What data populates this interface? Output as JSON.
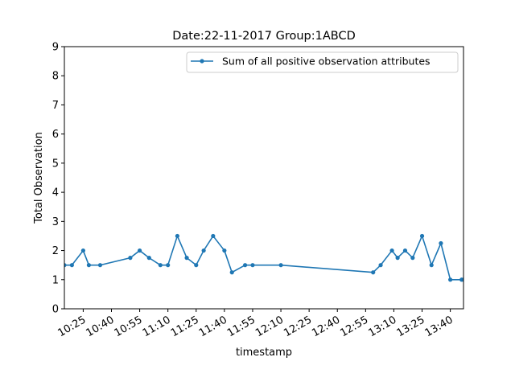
{
  "chart_data": {
    "type": "line",
    "title": "Date:22-11-2017  Group:1ABCD",
    "xlabel": "timestamp",
    "ylabel": "Total Observation",
    "ylim": [
      0,
      9
    ],
    "xlim": [
      "10:15",
      "13:47"
    ],
    "x_ticks": [
      "10:25",
      "10:40",
      "10:55",
      "11:10",
      "11:25",
      "11:40",
      "11:55",
      "12:10",
      "12:25",
      "12:40",
      "12:55",
      "13:10",
      "13:25",
      "13:40"
    ],
    "y_ticks": [
      0,
      1,
      2,
      3,
      4,
      5,
      6,
      7,
      8,
      9
    ],
    "grid": false,
    "legend_position": "top-right",
    "series": [
      {
        "name": "Sum of all positive observation attributes",
        "color": "#1f77b4",
        "points": [
          {
            "x": "10:15",
            "y": 1.5
          },
          {
            "x": "10:19",
            "y": 1.5
          },
          {
            "x": "10:25",
            "y": 2.0
          },
          {
            "x": "10:28",
            "y": 1.5
          },
          {
            "x": "10:34",
            "y": 1.5
          },
          {
            "x": "10:50",
            "y": 1.75
          },
          {
            "x": "10:55",
            "y": 2.0
          },
          {
            "x": "11:00",
            "y": 1.75
          },
          {
            "x": "11:06",
            "y": 1.5
          },
          {
            "x": "11:10",
            "y": 1.5
          },
          {
            "x": "11:15",
            "y": 2.5
          },
          {
            "x": "11:20",
            "y": 1.75
          },
          {
            "x": "11:25",
            "y": 1.5
          },
          {
            "x": "11:29",
            "y": 2.0
          },
          {
            "x": "11:34",
            "y": 2.5
          },
          {
            "x": "11:40",
            "y": 2.0
          },
          {
            "x": "11:44",
            "y": 1.25
          },
          {
            "x": "11:51",
            "y": 1.5
          },
          {
            "x": "11:55",
            "y": 1.5
          },
          {
            "x": "12:10",
            "y": 1.5
          },
          {
            "x": "12:59",
            "y": 1.25
          },
          {
            "x": "13:03",
            "y": 1.5
          },
          {
            "x": "13:09",
            "y": 2.0
          },
          {
            "x": "13:12",
            "y": 1.75
          },
          {
            "x": "13:16",
            "y": 2.0
          },
          {
            "x": "13:20",
            "y": 1.75
          },
          {
            "x": "13:25",
            "y": 2.5
          },
          {
            "x": "13:30",
            "y": 1.5
          },
          {
            "x": "13:35",
            "y": 2.25
          },
          {
            "x": "13:40",
            "y": 1.0
          },
          {
            "x": "13:46",
            "y": 1.0
          },
          {
            "x": "13:47",
            "y": 1.0
          }
        ]
      }
    ]
  }
}
